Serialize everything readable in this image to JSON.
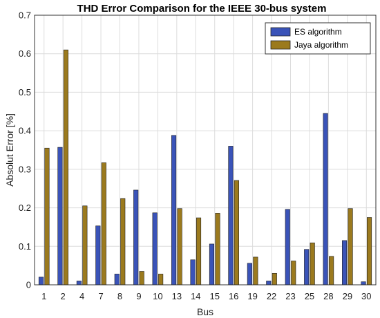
{
  "chart_data": {
    "type": "bar",
    "title": "THD Error Comparison for the IEEE 30-bus system",
    "xlabel": "Bus",
    "ylabel": "Absolut Error [%]",
    "ylim": [
      0,
      0.7
    ],
    "yticks": [
      "0",
      "0.1",
      "0.2",
      "0.3",
      "0.4",
      "0.5",
      "0.6",
      "0.7"
    ],
    "categories": [
      "1",
      "2",
      "4",
      "7",
      "8",
      "9",
      "10",
      "13",
      "14",
      "15",
      "16",
      "19",
      "22",
      "23",
      "25",
      "28",
      "29",
      "30"
    ],
    "series": [
      {
        "name": "ES algorithm",
        "color": "#3a53b8",
        "values": [
          0.02,
          0.357,
          0.01,
          0.153,
          0.028,
          0.246,
          0.187,
          0.388,
          0.065,
          0.106,
          0.36,
          0.056,
          0.01,
          0.196,
          0.092,
          0.445,
          0.115,
          0.008
        ]
      },
      {
        "name": "Jaya algorithm",
        "color": "#9b7a1e",
        "values": [
          0.355,
          0.61,
          0.205,
          0.317,
          0.224,
          0.035,
          0.028,
          0.198,
          0.174,
          0.186,
          0.271,
          0.072,
          0.03,
          0.062,
          0.109,
          0.074,
          0.198,
          0.175
        ]
      }
    ],
    "grid": true,
    "legend_position": "top-right"
  }
}
